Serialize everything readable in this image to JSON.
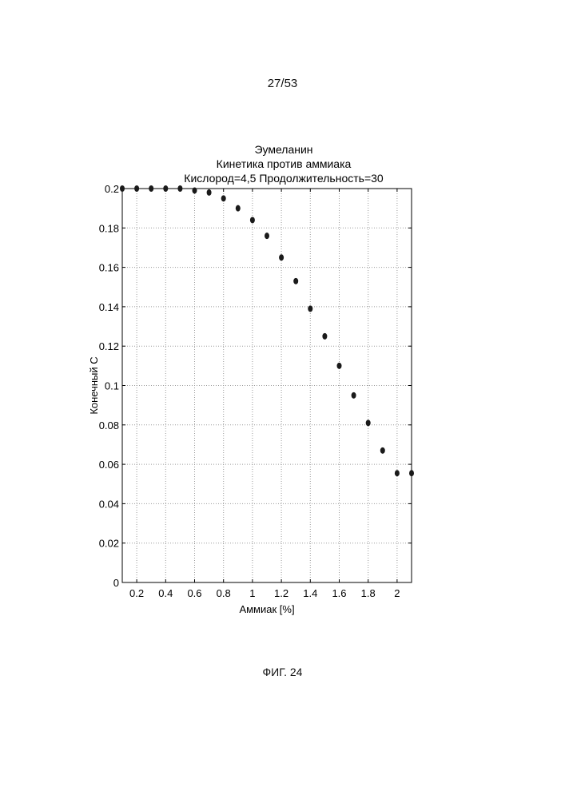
{
  "page": {
    "number": "27/53",
    "figure_caption": "ФИГ. 24"
  },
  "colors": {
    "points": "#1a1a1a",
    "grid": "#9a9a9a",
    "axes": "#000000"
  },
  "chart_data": {
    "type": "scatter",
    "title": [
      "Эумеланин",
      "Кинетика против аммиака",
      "Кислород=4,5 Продолжительность=30"
    ],
    "xlabel": "Аммиак [%]",
    "ylabel": "Конечный С",
    "xlim": [
      0.1,
      2.1
    ],
    "ylim": [
      0,
      0.2
    ],
    "grid": true,
    "xticks": [
      0.2,
      0.4,
      0.6,
      0.8,
      1,
      1.2,
      1.4,
      1.6,
      1.8,
      2
    ],
    "xtick_labels": [
      "0.2",
      "0.4",
      "0.6",
      "0.8",
      "1",
      "1.2",
      "1.4",
      "1.6",
      "1.8",
      "2"
    ],
    "yticks": [
      0,
      0.02,
      0.04,
      0.06,
      0.08,
      0.1,
      0.12,
      0.14,
      0.16,
      0.18,
      0.2
    ],
    "ytick_labels": [
      "0",
      "0.02",
      "0.04",
      "0.06",
      "0.08",
      "0.1",
      "0.12",
      "0.14",
      "0.16",
      "0.18",
      "0.2"
    ],
    "x": [
      0.1,
      0.2,
      0.3,
      0.4,
      0.5,
      0.6,
      0.7,
      0.8,
      0.9,
      1.0,
      1.1,
      1.2,
      1.3,
      1.4,
      1.5,
      1.6,
      1.7,
      1.8,
      1.9,
      2.0,
      2.1
    ],
    "y": [
      0.2,
      0.2,
      0.2,
      0.2,
      0.2,
      0.199,
      0.198,
      0.195,
      0.19,
      0.184,
      0.176,
      0.165,
      0.153,
      0.139,
      0.125,
      0.11,
      0.095,
      0.081,
      0.067,
      0.0555,
      0.0555
    ]
  }
}
